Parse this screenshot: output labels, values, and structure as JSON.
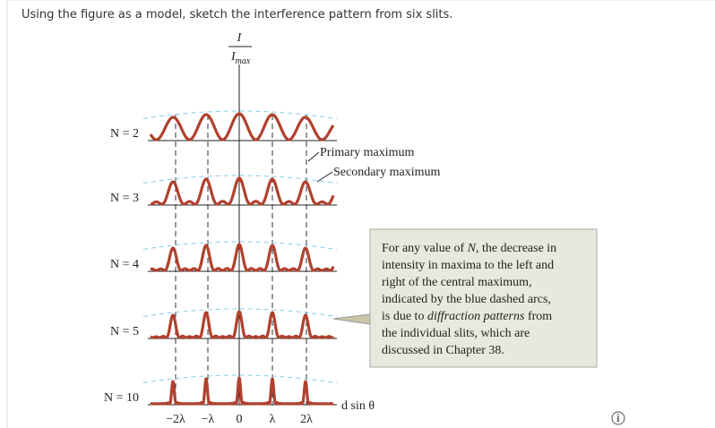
{
  "question": "Using the figure as a model, sketch the interference pattern from six slits.",
  "figure": {
    "y_axis_label": {
      "numerator": "I",
      "denominator": "I",
      "subscript": "max"
    },
    "rows": [
      "N = 2",
      "N = 3",
      "N = 4",
      "N = 5",
      "N = 10"
    ],
    "x_ticks": [
      "−2λ",
      "−λ",
      "0",
      "λ",
      "2λ"
    ],
    "x_axis_label": "d sin θ",
    "annotations": [
      "Primary maximum",
      "Secondary maximum"
    ],
    "callout": [
      [
        {
          "text": "For any value of "
        },
        {
          "text": "N",
          "italic": true
        },
        {
          "text": ", the decrease in"
        }
      ],
      [
        {
          "text": "intensity in maxima to the left and"
        }
      ],
      [
        {
          "text": "right of the central maximum,"
        }
      ],
      [
        {
          "text": "indicated by the blue dashed arcs,"
        }
      ],
      [
        {
          "text": "is due to "
        },
        {
          "text": "diffraction patterns",
          "italic": true
        },
        {
          "text": " from"
        }
      ],
      [
        {
          "text": "the individual slits, which are"
        }
      ],
      [
        {
          "text": "discussed in Chapter 38."
        }
      ]
    ]
  }
}
